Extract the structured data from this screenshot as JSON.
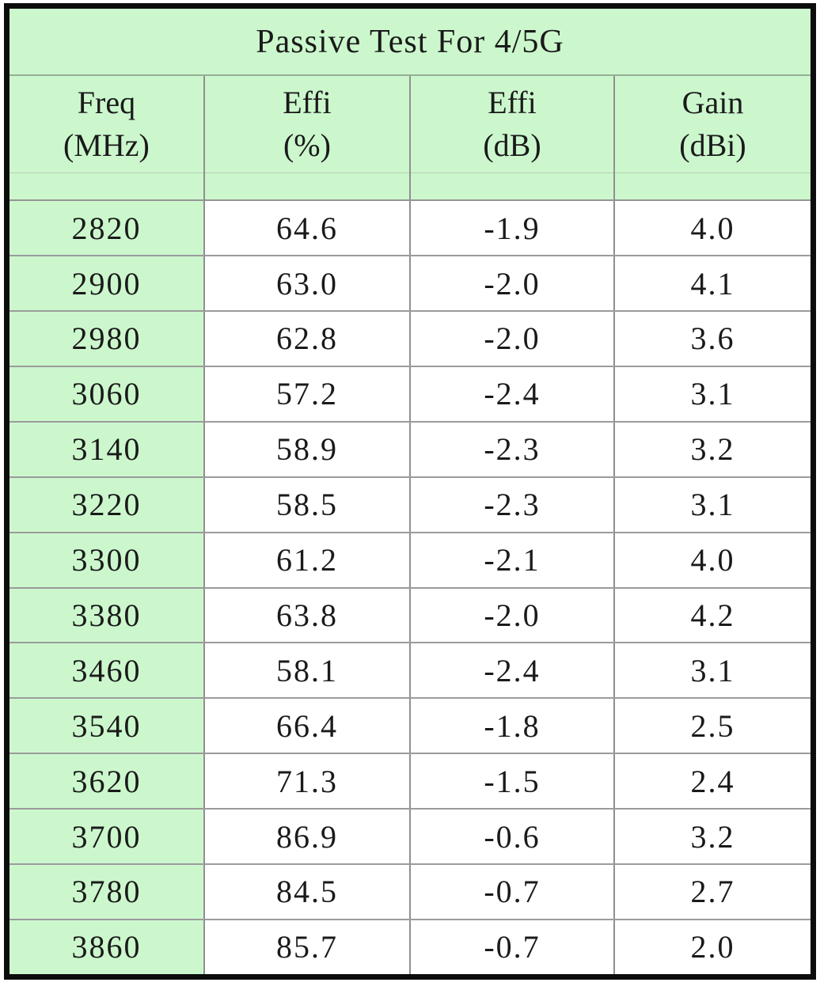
{
  "table": {
    "title": "Passive Test For 4/5G",
    "columns": [
      {
        "name": "Freq",
        "unit": "(MHz)"
      },
      {
        "name": "Effi",
        "unit": "(%)"
      },
      {
        "name": "Effi",
        "unit": "(dB)"
      },
      {
        "name": "Gain",
        "unit": "(dBi)"
      }
    ],
    "rows": [
      [
        "2820",
        "64.6",
        "-1.9",
        "4.0"
      ],
      [
        "2900",
        "63.0",
        "-2.0",
        "4.1"
      ],
      [
        "2980",
        "62.8",
        "-2.0",
        "3.6"
      ],
      [
        "3060",
        "57.2",
        "-2.4",
        "3.1"
      ],
      [
        "3140",
        "58.9",
        "-2.3",
        "3.2"
      ],
      [
        "3220",
        "58.5",
        "-2.3",
        "3.1"
      ],
      [
        "3300",
        "61.2",
        "-2.1",
        "4.0"
      ],
      [
        "3380",
        "63.8",
        "-2.0",
        "4.2"
      ],
      [
        "3460",
        "58.1",
        "-2.4",
        "3.1"
      ],
      [
        "3540",
        "66.4",
        "-1.8",
        "2.5"
      ],
      [
        "3620",
        "71.3",
        "-1.5",
        "2.4"
      ],
      [
        "3700",
        "86.9",
        "-0.6",
        "3.2"
      ],
      [
        "3780",
        "84.5",
        "-0.7",
        "2.7"
      ],
      [
        "3860",
        "85.7",
        "-0.7",
        "2.0"
      ]
    ]
  },
  "colors": {
    "cell_green": "#ccf7cd",
    "outer_border": "#0c0c0c",
    "gridline_gray": "#9b9b9b",
    "text": "#1a1a1a"
  },
  "chart_data": {
    "type": "table",
    "title": "Passive Test For 4/5G",
    "columns": [
      "Freq (MHz)",
      "Effi (%)",
      "Effi (dB)",
      "Gain (dBi)"
    ],
    "freq_mhz": [
      2820,
      2900,
      2980,
      3060,
      3140,
      3220,
      3300,
      3380,
      3460,
      3540,
      3620,
      3700,
      3780,
      3860
    ],
    "effi_percent": [
      64.6,
      63.0,
      62.8,
      57.2,
      58.9,
      58.5,
      61.2,
      63.8,
      58.1,
      66.4,
      71.3,
      86.9,
      84.5,
      85.7
    ],
    "effi_db": [
      -1.9,
      -2.0,
      -2.0,
      -2.4,
      -2.3,
      -2.3,
      -2.1,
      -2.0,
      -2.4,
      -1.8,
      -1.5,
      -0.6,
      -0.7,
      -0.7
    ],
    "gain_dbi": [
      4.0,
      4.1,
      3.6,
      3.1,
      3.2,
      3.1,
      4.0,
      4.2,
      3.1,
      2.5,
      2.4,
      3.2,
      2.7,
      2.0
    ]
  }
}
